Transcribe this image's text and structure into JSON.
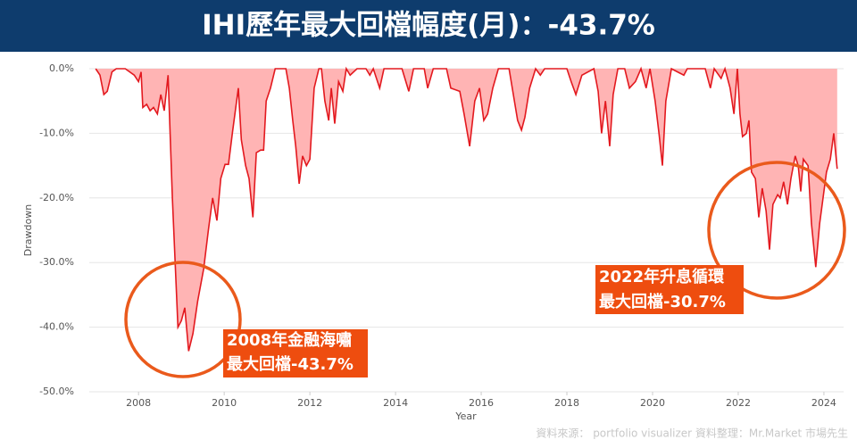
{
  "chart_data": {
    "type": "area",
    "title": "IHI歷年最大回檔幅度(月)：-43.7%",
    "x_label": "Year",
    "y_label": "Drawdown",
    "xlim": [
      2006.85,
      2024.46
    ],
    "xticks": [
      2008,
      2010,
      2012,
      2014,
      2016,
      2018,
      2020,
      2022,
      2024
    ],
    "ylim": [
      -50,
      0
    ],
    "yticks": [
      {
        "value": 0,
        "label": "0.0%"
      },
      {
        "value": -10,
        "label": "-10.0%"
      },
      {
        "value": -20,
        "label": "-20.0%"
      },
      {
        "value": -30,
        "label": "-30.0%"
      },
      {
        "value": -40,
        "label": "-40.0%"
      },
      {
        "value": -50,
        "label": "-50.0%"
      }
    ],
    "grid": true,
    "series": [
      {
        "color": "#e3191f",
        "fill": "#ffb4b4",
        "x": [
          2007.0,
          2007.1,
          2007.19,
          2007.27,
          2007.38,
          2007.48,
          2007.69,
          2007.9,
          2008.0,
          2008.06,
          2008.1,
          2008.19,
          2008.27,
          2008.35,
          2008.44,
          2008.52,
          2008.6,
          2008.69,
          2008.79,
          2008.92,
          2009.0,
          2009.08,
          2009.17,
          2009.27,
          2009.38,
          2009.52,
          2009.63,
          2009.73,
          2009.83,
          2009.92,
          2010.02,
          2010.1,
          2010.19,
          2010.27,
          2010.33,
          2010.4,
          2010.5,
          2010.58,
          2010.67,
          2010.75,
          2010.85,
          2010.92,
          2010.98,
          2011.08,
          2011.19,
          2011.44,
          2011.52,
          2011.6,
          2011.67,
          2011.75,
          2011.83,
          2011.92,
          2012.0,
          2012.1,
          2012.21,
          2012.27,
          2012.35,
          2012.44,
          2012.5,
          2012.58,
          2012.67,
          2012.77,
          2012.85,
          2012.94,
          2013.1,
          2013.31,
          2013.4,
          2013.48,
          2013.63,
          2013.73,
          2014.15,
          2014.31,
          2014.42,
          2014.67,
          2014.75,
          2014.88,
          2015.19,
          2015.29,
          2015.5,
          2015.6,
          2015.73,
          2015.85,
          2015.96,
          2016.06,
          2016.15,
          2016.27,
          2016.4,
          2016.65,
          2016.75,
          2016.85,
          2016.94,
          2017.02,
          2017.13,
          2017.27,
          2017.38,
          2017.48,
          2018.0,
          2018.1,
          2018.21,
          2018.35,
          2018.63,
          2018.73,
          2018.81,
          2018.9,
          2019.0,
          2019.08,
          2019.19,
          2019.35,
          2019.46,
          2019.6,
          2019.73,
          2019.85,
          2019.94,
          2020.06,
          2020.15,
          2020.23,
          2020.31,
          2020.44,
          2020.73,
          2020.81,
          2021.23,
          2021.35,
          2021.44,
          2021.6,
          2021.69,
          2021.81,
          2021.9,
          2021.98,
          2022.04,
          2022.1,
          2022.19,
          2022.25,
          2022.31,
          2022.4,
          2022.48,
          2022.56,
          2022.65,
          2022.73,
          2022.81,
          2022.92,
          2022.98,
          2023.06,
          2023.15,
          2023.23,
          2023.33,
          2023.4,
          2023.46,
          2023.52,
          2023.63,
          2023.71,
          2023.81,
          2023.9,
          2023.98,
          2024.06,
          2024.15,
          2024.23,
          2024.31
        ],
        "values": [
          0,
          -1,
          -4,
          -3.5,
          -0.5,
          0,
          0,
          -1,
          -2,
          -0.5,
          -6,
          -5.5,
          -6.5,
          -6,
          -7,
          -4,
          -6.5,
          -1,
          -20,
          -40,
          -39,
          -37,
          -43.7,
          -41,
          -36,
          -31,
          -25,
          -20,
          -23.5,
          -17,
          -14.8,
          -14.8,
          -10,
          -6,
          -3,
          -11,
          -15,
          -17,
          -23,
          -13,
          -12.6,
          -12.6,
          -5,
          -3,
          0,
          0,
          -3,
          -8,
          -12,
          -17.8,
          -13.5,
          -15,
          -14,
          -3,
          0,
          0,
          -5,
          -8,
          -3,
          -8.5,
          -2,
          -3.5,
          0,
          -1,
          0,
          0,
          -1,
          0,
          -3,
          0,
          0,
          -3.5,
          0,
          0,
          -3,
          0,
          0,
          -3,
          -3.5,
          -7,
          -12,
          -5,
          -3,
          -8,
          -7,
          -3,
          0,
          0,
          -4,
          -8,
          -9.5,
          -7.5,
          -3,
          0,
          -1,
          0,
          0,
          -2,
          -4,
          -1,
          0,
          -3.5,
          -10,
          -5,
          -12,
          -4,
          0,
          0,
          -3,
          -2,
          0,
          -3,
          0,
          -5,
          -10,
          -15,
          -5,
          0,
          -1,
          0,
          0,
          -3,
          0,
          -1.5,
          0,
          -3,
          -7,
          0,
          -7,
          -10.5,
          -10,
          -8,
          -16,
          -17,
          -23,
          -18.5,
          -22,
          -28,
          -21,
          -19.5,
          -20,
          -17.5,
          -21,
          -17,
          -13.5,
          -15,
          -19,
          -14,
          -15,
          -24,
          -30.7,
          -24,
          -20,
          -16,
          -14,
          -10,
          -15.5
        ]
      }
    ],
    "annotations": [
      [
        "2008年金融海嘯",
        "最大回檔-43.7%"
      ],
      [
        "2022年升息循環",
        "最大回檔-30.7%"
      ]
    ],
    "source": "資料來源：  portfolio visualizer    資料整理：Mr.Market 市場先生"
  }
}
